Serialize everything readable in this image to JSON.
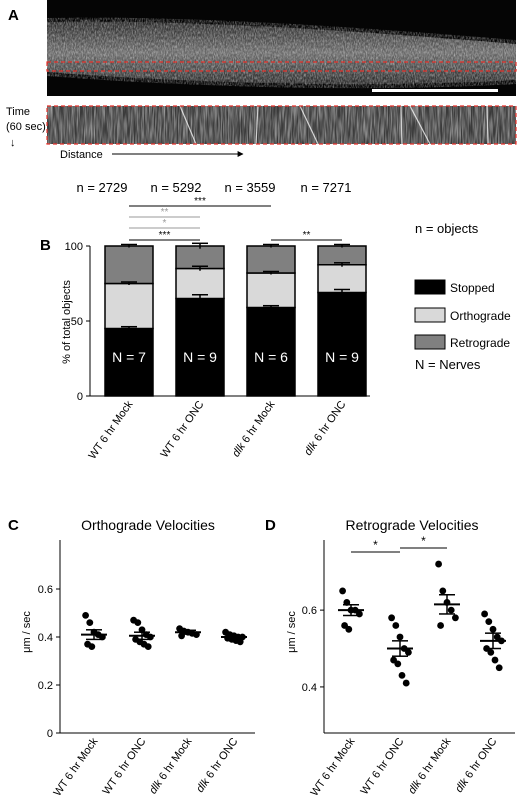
{
  "panel_labels": {
    "A": "A",
    "B": "B",
    "C": "C",
    "D": "D"
  },
  "panel_a": {
    "time_label_line1": "Time",
    "time_label_line2": "(60 sec)",
    "distance_label": "Distance"
  },
  "colors": {
    "stopped": "#000000",
    "orthograde": "#d9d9d9",
    "retrograde": "#808080",
    "roi_box": "#e8312a",
    "grey_sig": "#9a9a9a"
  },
  "chart_data": [
    {
      "type": "bar",
      "panel": "B",
      "stacked": true,
      "categories": [
        "WT 6 hr Mock",
        "WT 6 hr ONC",
        "dlk 6 hr Mock",
        "dlk 6 hr ONC"
      ],
      "category_parts": [
        {
          "a": "WT",
          "b": " 6 hr Mock"
        },
        {
          "a": "WT",
          "b": " 6 hr ONC"
        },
        {
          "a": "dlk",
          "b": " 6 hr Mock"
        },
        {
          "a": "dlk",
          "b": " 6 hr ONC"
        }
      ],
      "series": [
        {
          "name": "Stopped",
          "values": [
            45,
            65,
            59,
            69
          ],
          "errors": [
            1.2,
            2.5,
            1.2,
            2.0
          ]
        },
        {
          "name": "Orthograde",
          "values": [
            30,
            20,
            23,
            18.5
          ],
          "errors": [
            1.0,
            1.5,
            1.0,
            1.3
          ]
        },
        {
          "name": "Retrograde",
          "values": [
            25,
            15,
            18,
            12.5
          ],
          "errors": [
            1.0,
            1.8,
            1.0,
            1.0
          ]
        }
      ],
      "ylabel": "% of total objects",
      "ylim": [
        0,
        100
      ],
      "yticks": [
        0,
        50,
        100
      ],
      "n_objects": [
        "n = 2729",
        "n = 5292",
        "n = 3559",
        "n = 7271"
      ],
      "n_nerves": [
        "N = 7",
        "N = 9",
        "N = 6",
        "N = 9"
      ],
      "legend": [
        "Stopped",
        "Orthograde",
        "Retrograde"
      ],
      "note_objects": "n = objects",
      "note_nerves": "N = Nerves",
      "significance": [
        {
          "from": 0,
          "to": 2,
          "label": "***",
          "color": "black"
        },
        {
          "from": 0,
          "to": 1,
          "label": "**",
          "color": "grey"
        },
        {
          "from": 0,
          "to": 1,
          "label": "*",
          "color": "grey"
        },
        {
          "from": 0,
          "to": 1,
          "label": "***",
          "color": "black"
        },
        {
          "from": 2,
          "to": 3,
          "label": "**",
          "color": "black"
        }
      ]
    },
    {
      "type": "scatter",
      "panel": "C",
      "title": "Orthograde Velocities",
      "ylabel": "μm / sec",
      "ylim": [
        0,
        0.8
      ],
      "yticks": [
        0,
        0.2,
        0.4,
        0.6
      ],
      "categories": [
        "WT 6 hr Mock",
        "WT 6 hr ONC",
        "dlk 6 hr Mock",
        "dlk 6 hr ONC"
      ],
      "points": [
        [
          0.49,
          0.46,
          0.42,
          0.41,
          0.4,
          0.37,
          0.36
        ],
        [
          0.47,
          0.46,
          0.43,
          0.41,
          0.4,
          0.39,
          0.38,
          0.37,
          0.36
        ],
        [
          0.435,
          0.425,
          0.42,
          0.415,
          0.41,
          0.405
        ],
        [
          0.42,
          0.41,
          0.405,
          0.4,
          0.4,
          0.395,
          0.39,
          0.385,
          0.38
        ]
      ],
      "means": [
        0.41,
        0.405,
        0.42,
        0.4
      ],
      "sem": [
        0.02,
        0.015,
        0.008,
        0.006
      ],
      "significance": []
    },
    {
      "type": "scatter",
      "panel": "D",
      "title": "Retrograde Velocities",
      "ylabel": "μm / sec",
      "ylim": [
        0.28,
        0.78
      ],
      "yticks": [
        0.4,
        0.6
      ],
      "categories": [
        "WT 6 hr Mock",
        "WT 6 hr ONC",
        "dlk 6 hr Mock",
        "dlk 6 hr ONC"
      ],
      "points": [
        [
          0.65,
          0.62,
          0.6,
          0.6,
          0.59,
          0.56,
          0.55
        ],
        [
          0.58,
          0.56,
          0.53,
          0.5,
          0.49,
          0.47,
          0.46,
          0.43,
          0.41
        ],
        [
          0.72,
          0.65,
          0.62,
          0.6,
          0.58,
          0.56
        ],
        [
          0.59,
          0.57,
          0.55,
          0.53,
          0.52,
          0.5,
          0.49,
          0.47,
          0.45
        ]
      ],
      "means": [
        0.6,
        0.5,
        0.615,
        0.52
      ],
      "sem": [
        0.014,
        0.02,
        0.025,
        0.02
      ],
      "significance": [
        {
          "from": 0,
          "to": 1,
          "label": "*"
        },
        {
          "from": 1,
          "to": 2,
          "label": "*"
        }
      ]
    }
  ]
}
